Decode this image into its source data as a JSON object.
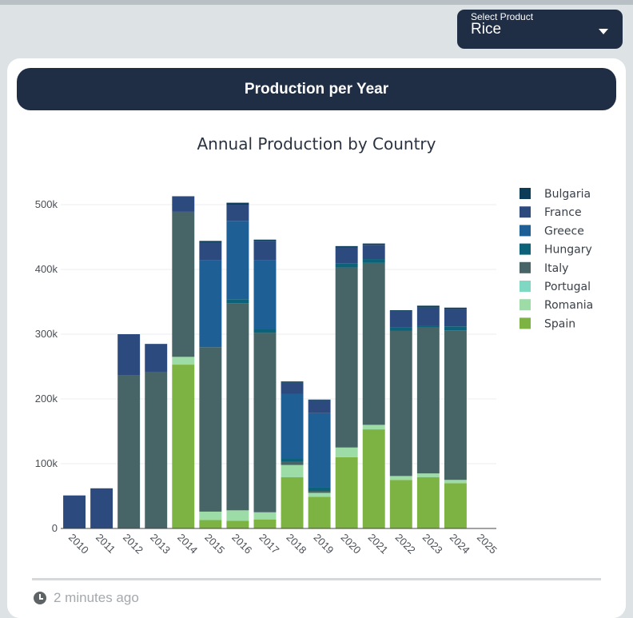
{
  "selector": {
    "label": "Select Product",
    "value": "Rice"
  },
  "card": {
    "header": "Production per Year"
  },
  "footer": {
    "updated": "2 minutes ago"
  },
  "chart_data": {
    "type": "bar",
    "stacked": true,
    "title": "Annual Production by Country",
    "xlabel": "",
    "ylabel": "",
    "ylim": [
      0,
      550000
    ],
    "yticks": [
      0,
      100000,
      200000,
      300000,
      400000,
      500000
    ],
    "ytick_labels": [
      "0",
      "100k",
      "200k",
      "300k",
      "400k",
      "500k"
    ],
    "grid": true,
    "legend_position": "right",
    "categories": [
      "2010",
      "2011",
      "2012",
      "2013",
      "2014",
      "2015",
      "2016",
      "2017",
      "2018",
      "2019",
      "2020",
      "2021",
      "2022",
      "2023",
      "2024",
      "2025"
    ],
    "series": [
      {
        "name": "Spain",
        "color": "#7cb342",
        "values": [
          0,
          0,
          0,
          0,
          253000,
          13000,
          12000,
          14000,
          79000,
          49000,
          110000,
          153000,
          75000,
          79000,
          70000,
          0
        ]
      },
      {
        "name": "Romania",
        "color": "#9ddba7",
        "values": [
          0,
          0,
          0,
          0,
          12000,
          13000,
          16000,
          11000,
          19000,
          6000,
          15000,
          7000,
          6000,
          6000,
          5000,
          0
        ]
      },
      {
        "name": "Portugal",
        "color": "#7fd8c1",
        "values": [
          0,
          0,
          0,
          0,
          0,
          0,
          0,
          0,
          0,
          0,
          0,
          0,
          0,
          0,
          0,
          0
        ]
      },
      {
        "name": "Italy",
        "color": "#476567",
        "values": [
          0,
          0,
          237000,
          242000,
          224000,
          254000,
          320000,
          277000,
          5000,
          3000,
          278000,
          250000,
          224000,
          225000,
          231000,
          0
        ]
      },
      {
        "name": "Hungary",
        "color": "#0c6379",
        "values": [
          0,
          0,
          0,
          0,
          0,
          0,
          6000,
          6000,
          5000,
          5000,
          6000,
          6000,
          6000,
          3000,
          6000,
          0
        ]
      },
      {
        "name": "Greece",
        "color": "#1e5f96",
        "values": [
          0,
          0,
          0,
          0,
          0,
          134000,
          121000,
          106000,
          100000,
          115000,
          0,
          0,
          0,
          0,
          0,
          0
        ]
      },
      {
        "name": "France",
        "color": "#2d4a7e",
        "values": [
          51000,
          62000,
          63000,
          43000,
          24000,
          28000,
          25000,
          30000,
          17000,
          20000,
          25000,
          22000,
          24000,
          28000,
          27000,
          0
        ]
      },
      {
        "name": "Bulgaria",
        "color": "#0b3d58",
        "values": [
          0,
          0,
          0,
          0,
          0,
          2000,
          3000,
          2000,
          2000,
          1000,
          2000,
          2000,
          2000,
          3000,
          2000,
          0
        ]
      }
    ],
    "legend_order": [
      "Bulgaria",
      "France",
      "Greece",
      "Hungary",
      "Italy",
      "Portugal",
      "Romania",
      "Spain"
    ]
  }
}
